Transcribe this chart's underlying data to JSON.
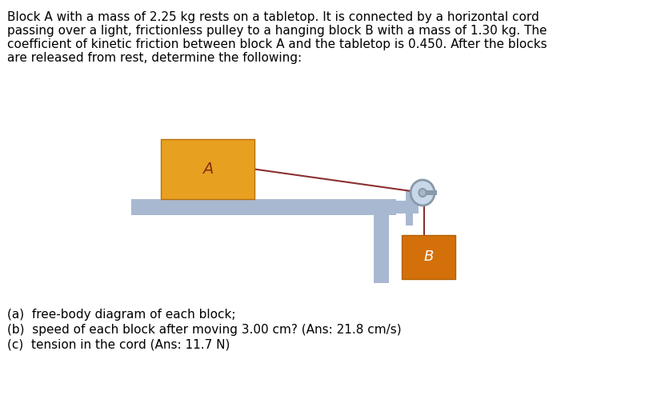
{
  "bg_color": "#ffffff",
  "text_color": "#000000",
  "paragraph": "Block A with a mass of 2.25 kg rests on a tabletop. It is connected by a horizontal cord\npassing over a light, frictionless pulley to a hanging block B with a mass of 1.30 kg. The\ncoefficient of kinetic friction between block A and the tabletop is 0.450. After the blocks\nare released from rest, determine the following:",
  "questions": [
    "(a)  free-body diagram of each block;",
    "(b)  speed of each block after moving 3.00 cm? (Ans: 21.8 cm/s)",
    "(c)  tension in the cord (Ans: 11.7 N)"
  ],
  "block_A_color": "#E8A020",
  "block_B_color": "#D4700A",
  "table_color": "#A8B8D0",
  "support_color": "#A8B8D0",
  "pulley_color": "#A8B8D0",
  "cord_color": "#8B3030",
  "label_A": "A",
  "label_B": "B",
  "font_size_text": 11,
  "font_size_labels": 12
}
